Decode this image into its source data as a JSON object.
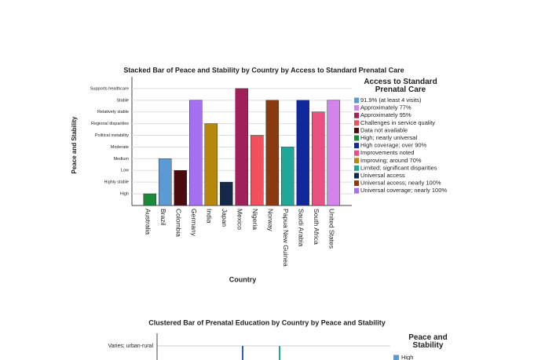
{
  "chart_data": [
    {
      "type": "stacked_bar",
      "title": "Stacked Bar of Peace and Stability by Country by Access to Standard Prenatal Care",
      "x_label": "Country",
      "y_label": "Peace and Stability",
      "legend_title": "Access to Standard Prenatal Care",
      "categories": [
        "Australia",
        "Brazil",
        "Colombia",
        "Germany",
        "India",
        "Japan",
        "Mexico",
        "Nigeria",
        "Norway",
        "Papua New Guinea",
        "Saudi Arabia",
        "South Africa",
        "United States"
      ],
      "ylim": [
        0,
        11
      ],
      "yticks": [
        {
          "value": 1,
          "label": "High"
        },
        {
          "value": 2,
          "label": "Highly stable"
        },
        {
          "value": 3,
          "label": "Low"
        },
        {
          "value": 4,
          "label": "Medium"
        },
        {
          "value": 5,
          "label": "Moderate"
        },
        {
          "value": 6,
          "label": "Political instability"
        },
        {
          "value": 7,
          "label": "Regional disparities"
        },
        {
          "value": 8,
          "label": "Relatively stable"
        },
        {
          "value": 9,
          "label": "Stable"
        },
        {
          "value": 10,
          "label": "Supports healthcare"
        }
      ],
      "grid": true,
      "series": [
        {
          "name": "91.9% (at least 4 visits)",
          "color": "#5b9bd5",
          "values": [
            null,
            4,
            null,
            null,
            null,
            null,
            null,
            null,
            null,
            null,
            null,
            null,
            null
          ]
        },
        {
          "name": "Approximately 77%",
          "color": "#d383ea",
          "values": [
            null,
            null,
            null,
            null,
            null,
            null,
            null,
            null,
            null,
            null,
            null,
            null,
            9
          ]
        },
        {
          "name": "Approximately 95%",
          "color": "#a0205a",
          "values": [
            null,
            null,
            null,
            null,
            null,
            null,
            10,
            null,
            null,
            null,
            null,
            null,
            null
          ]
        },
        {
          "name": "Challenges in service quality",
          "color": "#f2505e",
          "values": [
            null,
            null,
            null,
            null,
            null,
            null,
            null,
            6,
            null,
            null,
            null,
            null,
            null
          ]
        },
        {
          "name": "Data not available",
          "color": "#4a0a0e",
          "values": [
            null,
            null,
            3,
            null,
            null,
            null,
            null,
            null,
            null,
            null,
            null,
            null,
            null
          ]
        },
        {
          "name": "High; nearly universal",
          "color": "#1a8a3a",
          "values": [
            1,
            null,
            null,
            null,
            null,
            null,
            null,
            null,
            null,
            null,
            null,
            null,
            null
          ]
        },
        {
          "name": "High coverage; over 90%",
          "color": "#10289a",
          "values": [
            null,
            null,
            null,
            null,
            null,
            null,
            null,
            null,
            null,
            null,
            9,
            null,
            null
          ]
        },
        {
          "name": "Improvements noted",
          "color": "#ea5080",
          "values": [
            null,
            null,
            null,
            null,
            null,
            null,
            null,
            null,
            null,
            null,
            null,
            8,
            null
          ]
        },
        {
          "name": "Improving; around 70%",
          "color": "#b8860b",
          "values": [
            null,
            null,
            null,
            null,
            7,
            null,
            null,
            null,
            null,
            null,
            null,
            null,
            null
          ]
        },
        {
          "name": "Limited; significant disparities",
          "color": "#1fa898",
          "values": [
            null,
            null,
            null,
            null,
            null,
            null,
            null,
            null,
            null,
            5,
            null,
            null,
            null
          ]
        },
        {
          "name": "Universal access",
          "color": "#14284a",
          "values": [
            null,
            null,
            null,
            null,
            null,
            2,
            null,
            null,
            null,
            null,
            null,
            null,
            null
          ]
        },
        {
          "name": "Universal access; nearly 100%",
          "color": "#8b3a0f",
          "values": [
            null,
            null,
            null,
            null,
            null,
            null,
            null,
            null,
            9,
            null,
            null,
            null,
            null
          ]
        },
        {
          "name": "Universal coverage; nearly 100%",
          "color": "#a46ff0",
          "values": [
            null,
            null,
            null,
            9,
            null,
            null,
            null,
            null,
            null,
            null,
            null,
            null,
            null
          ]
        }
      ]
    },
    {
      "type": "clustered_bar",
      "title": "Clustered Bar of Prenatal Education by Country by Peace and Stability",
      "legend_title": "Peace and Stability",
      "y_categories": [
        "Varies; urban-rural"
      ],
      "series": [
        {
          "name": "High",
          "color": "#5b9bd5"
        }
      ]
    }
  ]
}
